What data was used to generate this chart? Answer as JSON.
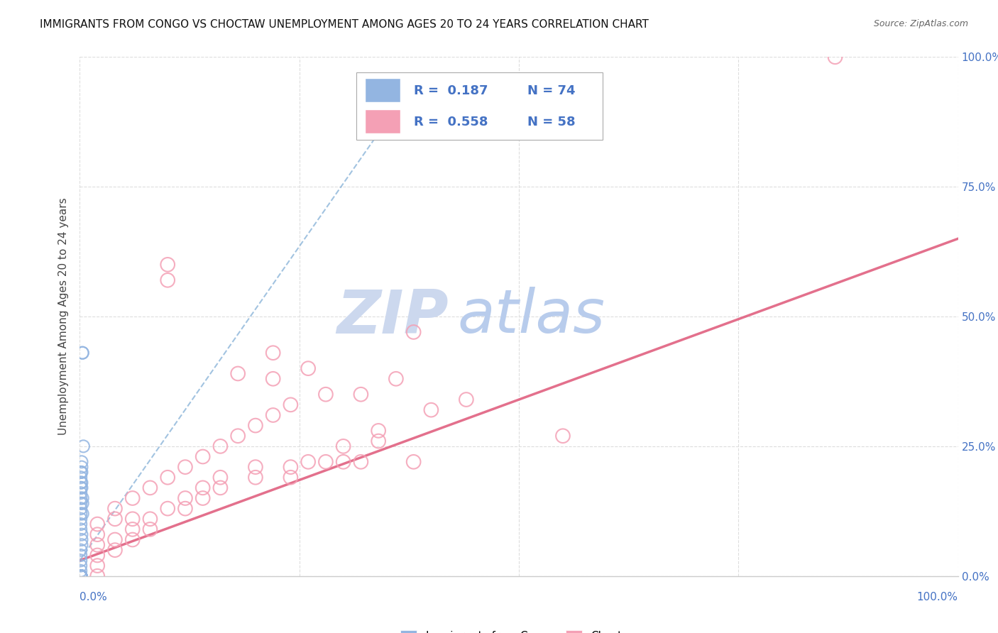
{
  "title": "IMMIGRANTS FROM CONGO VS CHOCTAW UNEMPLOYMENT AMONG AGES 20 TO 24 YEARS CORRELATION CHART",
  "source": "Source: ZipAtlas.com",
  "ylabel": "Unemployment Among Ages 20 to 24 years",
  "ytick_labels": [
    "0.0%",
    "25.0%",
    "50.0%",
    "75.0%",
    "100.0%"
  ],
  "xtick_left": "0.0%",
  "xtick_right": "100.0%",
  "legend_label1": "Immigrants from Congo",
  "legend_label2": "Choctaw",
  "legend_r1": "R =  0.187",
  "legend_n1": "N = 74",
  "legend_r2": "R =  0.558",
  "legend_n2": "N = 58",
  "color_congo": "#93b5e1",
  "color_choctaw": "#f4a0b5",
  "color_trend_congo": "#7baad4",
  "color_trend_choctaw": "#e06080",
  "color_watermark": "#ccd8ee",
  "watermark_text": "ZIP",
  "watermark_text2": "atlas",
  "congo_x": [
    0.003,
    0.003,
    0.004,
    0.002,
    0.001,
    0.001,
    0.001,
    0.001,
    0.001,
    0.001,
    0.001,
    0.001,
    0.001,
    0.001,
    0.001,
    0.001,
    0.002,
    0.002,
    0.002,
    0.002,
    0.003,
    0.003,
    0.003,
    0.002,
    0.002,
    0.002,
    0.001,
    0.001,
    0.001,
    0.001,
    0.001,
    0.001,
    0.001,
    0.001,
    0.001,
    0.001,
    0.001,
    0.001,
    0.001,
    0.001,
    0.001,
    0.001,
    0.001,
    0.001,
    0.001,
    0.001,
    0.001,
    0.001,
    0.001,
    0.001,
    0.001,
    0.001,
    0.001,
    0.001,
    0.001,
    0.001,
    0.001,
    0.001,
    0.001,
    0.001,
    0.001,
    0.001,
    0.001,
    0.001,
    0.001,
    0.001,
    0.001,
    0.001,
    0.001,
    0.001,
    0.001,
    0.001,
    0.001,
    0.001
  ],
  "congo_y": [
    0.43,
    0.43,
    0.25,
    0.22,
    0.2,
    0.19,
    0.18,
    0.17,
    0.16,
    0.15,
    0.14,
    0.13,
    0.12,
    0.11,
    0.1,
    0.09,
    0.21,
    0.2,
    0.18,
    0.17,
    0.15,
    0.14,
    0.12,
    0.08,
    0.07,
    0.06,
    0.05,
    0.04,
    0.03,
    0.02,
    0.01,
    0.0,
    0.0,
    0.0,
    0.0,
    0.0,
    0.0,
    0.0,
    0.0,
    0.0,
    0.0,
    0.0,
    0.0,
    0.0,
    0.0,
    0.0,
    0.0,
    0.0,
    0.0,
    0.0,
    0.0,
    0.0,
    0.0,
    0.0,
    0.0,
    0.0,
    0.0,
    0.0,
    0.0,
    0.0,
    0.0,
    0.0,
    0.0,
    0.0,
    0.0,
    0.0,
    0.0,
    0.0,
    0.0,
    0.0,
    0.0,
    0.0,
    0.0,
    0.0
  ],
  "choctaw_x": [
    0.86,
    0.1,
    0.1,
    0.38,
    0.44,
    0.22,
    0.22,
    0.32,
    0.28,
    0.32,
    0.28,
    0.24,
    0.24,
    0.2,
    0.2,
    0.16,
    0.16,
    0.14,
    0.14,
    0.12,
    0.12,
    0.1,
    0.08,
    0.08,
    0.06,
    0.06,
    0.04,
    0.04,
    0.02,
    0.02,
    0.02,
    0.02,
    0.02,
    0.02,
    0.04,
    0.04,
    0.06,
    0.06,
    0.08,
    0.1,
    0.12,
    0.14,
    0.16,
    0.18,
    0.2,
    0.22,
    0.24,
    0.26,
    0.3,
    0.34,
    0.38,
    0.55,
    0.18,
    0.26,
    0.3,
    0.34,
    0.36,
    0.4
  ],
  "choctaw_y": [
    1.0,
    0.6,
    0.57,
    0.47,
    0.34,
    0.43,
    0.38,
    0.35,
    0.35,
    0.22,
    0.22,
    0.21,
    0.19,
    0.21,
    0.19,
    0.19,
    0.17,
    0.17,
    0.15,
    0.15,
    0.13,
    0.13,
    0.11,
    0.09,
    0.09,
    0.07,
    0.07,
    0.05,
    0.1,
    0.08,
    0.06,
    0.04,
    0.02,
    0.0,
    0.13,
    0.11,
    0.15,
    0.11,
    0.17,
    0.19,
    0.21,
    0.23,
    0.25,
    0.27,
    0.29,
    0.31,
    0.33,
    0.22,
    0.25,
    0.28,
    0.22,
    0.27,
    0.39,
    0.4,
    0.22,
    0.26,
    0.38,
    0.32
  ],
  "congo_trend_x0": 0.0,
  "congo_trend_y0": 0.03,
  "congo_trend_x1": 0.38,
  "congo_trend_y1": 0.95,
  "choctaw_trend_x0": 0.0,
  "choctaw_trend_y0": 0.03,
  "choctaw_trend_x1": 1.0,
  "choctaw_trend_y1": 0.65,
  "xlim": [
    0.0,
    1.0
  ],
  "ylim": [
    0.0,
    1.0
  ],
  "grid_color": "#dddddd",
  "spine_color": "#cccccc",
  "right_tick_color": "#4472c4",
  "title_fontsize": 11,
  "source_fontsize": 9,
  "ylabel_fontsize": 11,
  "tick_fontsize": 11,
  "legend_fontsize": 13
}
